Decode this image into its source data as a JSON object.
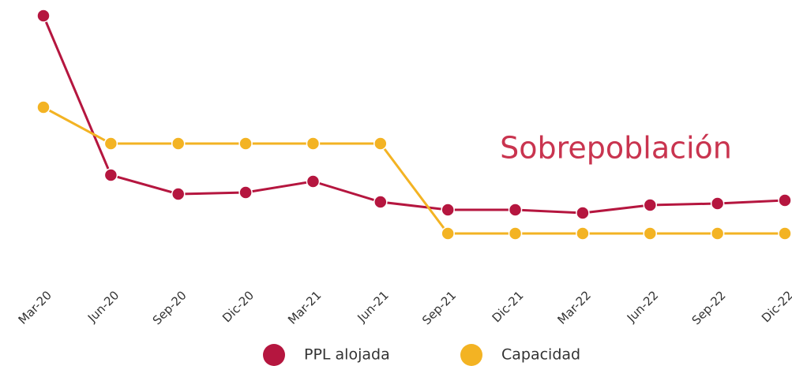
{
  "chart_data": {
    "type": "line",
    "categories": [
      "Mar-20",
      "Jun-20",
      "Sep-20",
      "Dic-20",
      "Mar-21",
      "Jun-21",
      "Sep-21",
      "Dic-21",
      "Mar-22",
      "Jun-22",
      "Sep-22",
      "Dic-22"
    ],
    "series": [
      {
        "name": "PPL alojada",
        "color": "#b5163f",
        "values": [
          310,
          108,
          84,
          86,
          100,
          74,
          64,
          64,
          60,
          70,
          72,
          76
        ]
      },
      {
        "name": "Capacidad",
        "color": "#f3b323",
        "values": [
          194,
          148,
          148,
          148,
          148,
          148,
          34,
          34,
          34,
          34,
          34,
          34
        ]
      }
    ],
    "ylim": [
      0,
      320
    ],
    "annotation": "Sobrepoblación",
    "legend": "bottom"
  }
}
